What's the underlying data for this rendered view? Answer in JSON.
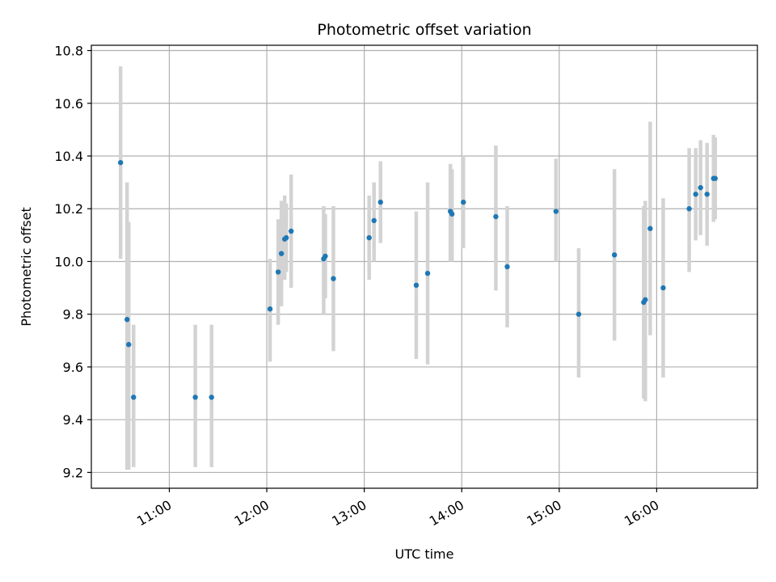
{
  "chart_data": {
    "type": "scatter",
    "title": "Photometric offset variation",
    "xlabel": "UTC time",
    "ylabel": "Photometric offset",
    "x_ticks": [
      "11:00",
      "12:00",
      "13:00",
      "14:00",
      "15:00",
      "16:00"
    ],
    "y_ticks": [
      "9.2",
      "9.4",
      "9.6",
      "9.8",
      "10.0",
      "10.2",
      "10.4",
      "10.6",
      "10.8"
    ],
    "xlim": [
      "10:12",
      "17:02"
    ],
    "ylim": [
      9.14,
      10.82
    ],
    "grid": true,
    "legend": "none",
    "colors": {
      "point": "#1f77b4",
      "errorbar": "#d3d3d3",
      "grid": "#b0b0b0"
    },
    "series": [
      {
        "points": [
          {
            "t": "10:30",
            "y": 10.375,
            "lo": 10.01,
            "hi": 10.74
          },
          {
            "t": "10:34",
            "y": 9.78,
            "lo": 9.21,
            "hi": 10.3
          },
          {
            "t": "10:35",
            "y": 9.685,
            "lo": 9.21,
            "hi": 10.15
          },
          {
            "t": "10:38",
            "y": 9.485,
            "lo": 9.22,
            "hi": 9.76
          },
          {
            "t": "11:16",
            "y": 9.485,
            "lo": 9.22,
            "hi": 9.76
          },
          {
            "t": "11:26",
            "y": 9.485,
            "lo": 9.22,
            "hi": 9.76
          },
          {
            "t": "12:02",
            "y": 9.82,
            "lo": 9.62,
            "hi": 10.01
          },
          {
            "t": "12:07",
            "y": 9.96,
            "lo": 9.76,
            "hi": 10.16
          },
          {
            "t": "12:09",
            "y": 10.03,
            "lo": 9.83,
            "hi": 10.23
          },
          {
            "t": "12:11",
            "y": 10.085,
            "lo": 9.93,
            "hi": 10.25
          },
          {
            "t": "12:12",
            "y": 10.09,
            "lo": 9.96,
            "hi": 10.22
          },
          {
            "t": "12:15",
            "y": 10.115,
            "lo": 9.9,
            "hi": 10.33
          },
          {
            "t": "12:35",
            "y": 10.01,
            "lo": 9.8,
            "hi": 10.21
          },
          {
            "t": "12:36",
            "y": 10.02,
            "lo": 9.86,
            "hi": 10.18
          },
          {
            "t": "12:41",
            "y": 9.935,
            "lo": 9.66,
            "hi": 10.21
          },
          {
            "t": "13:03",
            "y": 10.09,
            "lo": 9.93,
            "hi": 10.25
          },
          {
            "t": "13:06",
            "y": 10.155,
            "lo": 10.0,
            "hi": 10.3
          },
          {
            "t": "13:10",
            "y": 10.225,
            "lo": 10.07,
            "hi": 10.38
          },
          {
            "t": "13:32",
            "y": 9.91,
            "lo": 9.63,
            "hi": 10.19
          },
          {
            "t": "13:39",
            "y": 9.955,
            "lo": 9.61,
            "hi": 10.3
          },
          {
            "t": "13:53",
            "y": 10.19,
            "lo": 10.0,
            "hi": 10.37
          },
          {
            "t": "13:54",
            "y": 10.18,
            "lo": 10.0,
            "hi": 10.35
          },
          {
            "t": "14:01",
            "y": 10.225,
            "lo": 10.05,
            "hi": 10.4
          },
          {
            "t": "14:21",
            "y": 10.17,
            "lo": 9.89,
            "hi": 10.44
          },
          {
            "t": "14:28",
            "y": 9.98,
            "lo": 9.75,
            "hi": 10.21
          },
          {
            "t": "14:58",
            "y": 10.19,
            "lo": 10.0,
            "hi": 10.39
          },
          {
            "t": "15:12",
            "y": 9.8,
            "lo": 9.56,
            "hi": 10.05
          },
          {
            "t": "15:34",
            "y": 10.025,
            "lo": 9.7,
            "hi": 10.35
          },
          {
            "t": "15:52",
            "y": 9.845,
            "lo": 9.48,
            "hi": 10.21
          },
          {
            "t": "15:53",
            "y": 9.855,
            "lo": 9.47,
            "hi": 10.23
          },
          {
            "t": "15:56",
            "y": 10.125,
            "lo": 9.72,
            "hi": 10.53
          },
          {
            "t": "16:04",
            "y": 9.9,
            "lo": 9.56,
            "hi": 10.24
          },
          {
            "t": "16:20",
            "y": 10.2,
            "lo": 9.96,
            "hi": 10.43
          },
          {
            "t": "16:24",
            "y": 10.255,
            "lo": 10.08,
            "hi": 10.43
          },
          {
            "t": "16:27",
            "y": 10.28,
            "lo": 10.1,
            "hi": 10.46
          },
          {
            "t": "16:31",
            "y": 10.255,
            "lo": 10.06,
            "hi": 10.45
          },
          {
            "t": "16:35",
            "y": 10.315,
            "lo": 10.15,
            "hi": 10.48
          },
          {
            "t": "16:36",
            "y": 10.315,
            "lo": 10.16,
            "hi": 10.47
          }
        ]
      }
    ]
  }
}
